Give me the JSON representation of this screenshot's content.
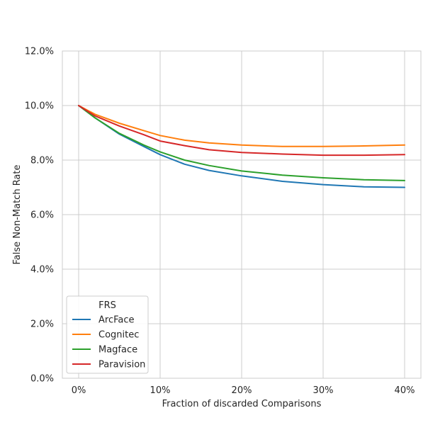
{
  "chart_data": {
    "type": "line",
    "title": "",
    "xlabel": "Fraction of discarded Comparisons",
    "ylabel": "False Non-Match Rate",
    "xlim": [
      -0.02,
      0.42
    ],
    "ylim": [
      0.0,
      0.12
    ],
    "x_ticks": [
      0.0,
      0.1,
      0.2,
      0.3,
      0.4
    ],
    "x_tick_labels": [
      "0%",
      "10%",
      "20%",
      "30%",
      "40%"
    ],
    "y_ticks": [
      0.0,
      0.02,
      0.04,
      0.06,
      0.08,
      0.1,
      0.12
    ],
    "y_tick_labels": [
      "0.0%",
      "2.0%",
      "4.0%",
      "6.0%",
      "8.0%",
      "10.0%",
      "12.0%"
    ],
    "grid": true,
    "legend": {
      "title": "FRS",
      "placement": "lower-left"
    },
    "x": [
      0.0,
      0.02,
      0.05,
      0.08,
      0.1,
      0.13,
      0.16,
      0.2,
      0.25,
      0.3,
      0.35,
      0.4
    ],
    "series": [
      {
        "name": "ArcFace",
        "color": "#1f77b4",
        "values": [
          0.1,
          0.0955,
          0.0895,
          0.085,
          0.082,
          0.0785,
          0.0762,
          0.0742,
          0.0722,
          0.071,
          0.0702,
          0.07
        ]
      },
      {
        "name": "Cognitec",
        "color": "#ff7f0e",
        "values": [
          0.1,
          0.0968,
          0.0935,
          0.0908,
          0.089,
          0.0873,
          0.0863,
          0.0855,
          0.085,
          0.085,
          0.0852,
          0.0855
        ]
      },
      {
        "name": "Magface",
        "color": "#2ca02c",
        "values": [
          0.1,
          0.0955,
          0.0898,
          0.0855,
          0.083,
          0.08,
          0.078,
          0.076,
          0.0745,
          0.0735,
          0.0728,
          0.0725
        ]
      },
      {
        "name": "Paravision",
        "color": "#d62728",
        "values": [
          0.1,
          0.0962,
          0.0925,
          0.0893,
          0.087,
          0.0853,
          0.0838,
          0.0828,
          0.0822,
          0.0818,
          0.0818,
          0.082
        ]
      }
    ]
  }
}
